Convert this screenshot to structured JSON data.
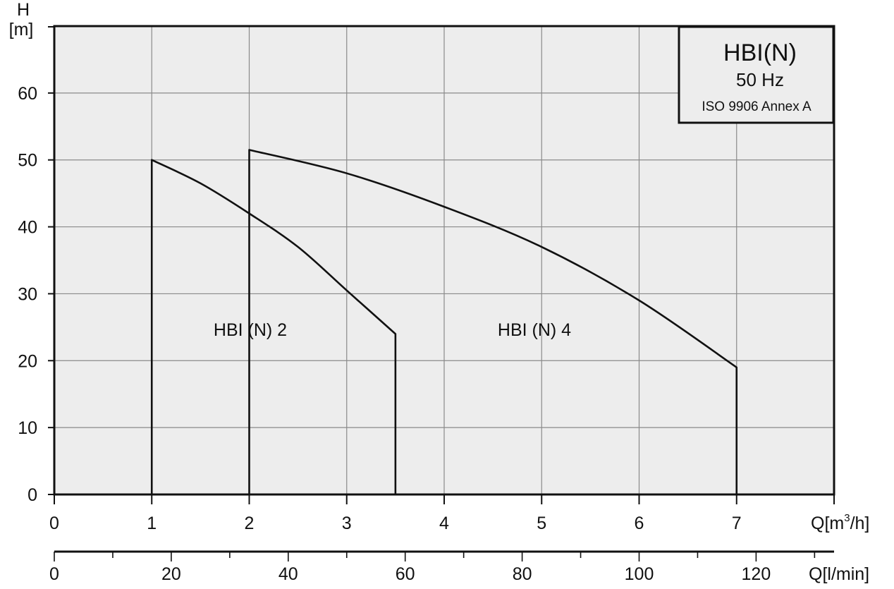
{
  "chart_data": {
    "type": "line",
    "title": "HBI(N)",
    "legend_box": {
      "title": "HBI(N)",
      "frequency": "50 Hz",
      "standard": "ISO 9906 Annex A",
      "placement": "top-right"
    },
    "y_axis": {
      "label_line1": "H",
      "label_line2": "[m]",
      "ticks": [
        0,
        10,
        20,
        30,
        40,
        50,
        60
      ],
      "range": [
        0,
        70
      ]
    },
    "x_axis": {
      "label": "Q[m³/h]",
      "label_main": "Q[m",
      "label_sup": "3",
      "label_end": "/h]",
      "ticks": [
        0,
        1,
        2,
        3,
        4,
        5,
        6,
        7
      ],
      "range": [
        0,
        8
      ]
    },
    "x2_axis": {
      "label": "Q[l/min]",
      "ticks": [
        0,
        20,
        40,
        60,
        80,
        100,
        120
      ],
      "range_lmin": [
        0,
        133.33
      ]
    },
    "grid": true,
    "series": [
      {
        "name": "HBI (N) 2",
        "x": [
          1.0,
          1.5,
          2.0,
          2.5,
          3.0,
          3.5
        ],
        "y": [
          50,
          46.5,
          42,
          37,
          30.5,
          24
        ]
      },
      {
        "name": "HBI (N) 4",
        "x": [
          2.0,
          3.0,
          4.0,
          5.0,
          6.0,
          7.0
        ],
        "y": [
          51.5,
          48,
          43,
          37,
          29,
          19
        ]
      }
    ]
  }
}
